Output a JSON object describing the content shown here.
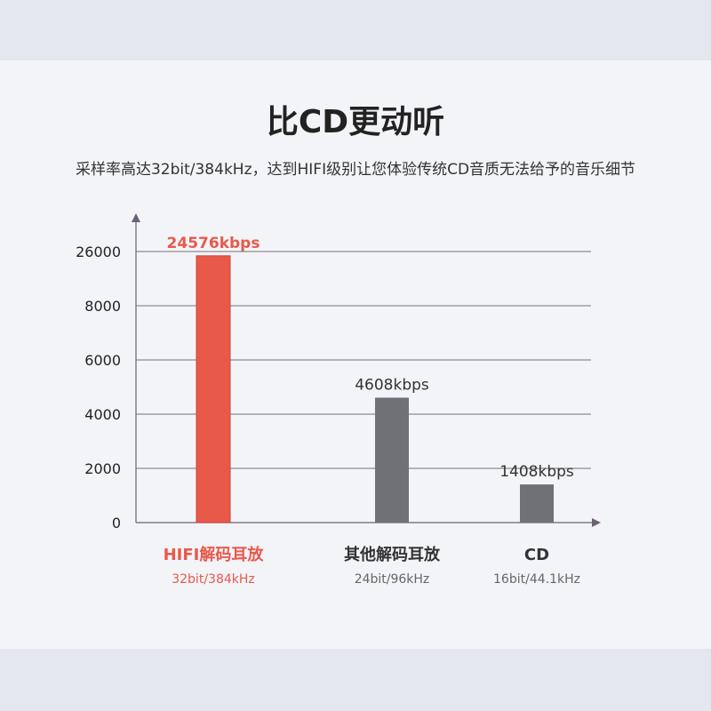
{
  "title": "比CD更动听",
  "subtitle": "采样率高达32bit/384kHz，达到HIFI级别让您体验传统CD音质无法给予的音乐细节",
  "chart_data": {
    "type": "bar",
    "y_ticks": [
      "0",
      "2000",
      "4000",
      "6000",
      "8000",
      "26000"
    ],
    "y_tick_values": [
      0,
      2000,
      4000,
      6000,
      8000,
      26000
    ],
    "categories": [
      "HIFI解码耳放",
      "其他解码耳放",
      "CD"
    ],
    "category_sublabels": [
      "32bit/384kHz",
      "24bit/96kHz",
      "16bit/44.1kHz"
    ],
    "values": [
      24576,
      4608,
      1408
    ],
    "value_labels": [
      "24576kbps",
      "4608kbps",
      "1408kbps"
    ],
    "bar_colors": [
      "#e8594a",
      "#707177",
      "#707177"
    ],
    "label_colors": [
      "#e8594a",
      "#333333",
      "#333333"
    ],
    "sublabel_colors": [
      "#e8594a",
      "#666666",
      "#666666"
    ],
    "grid": true,
    "y_axis_broken": true
  }
}
